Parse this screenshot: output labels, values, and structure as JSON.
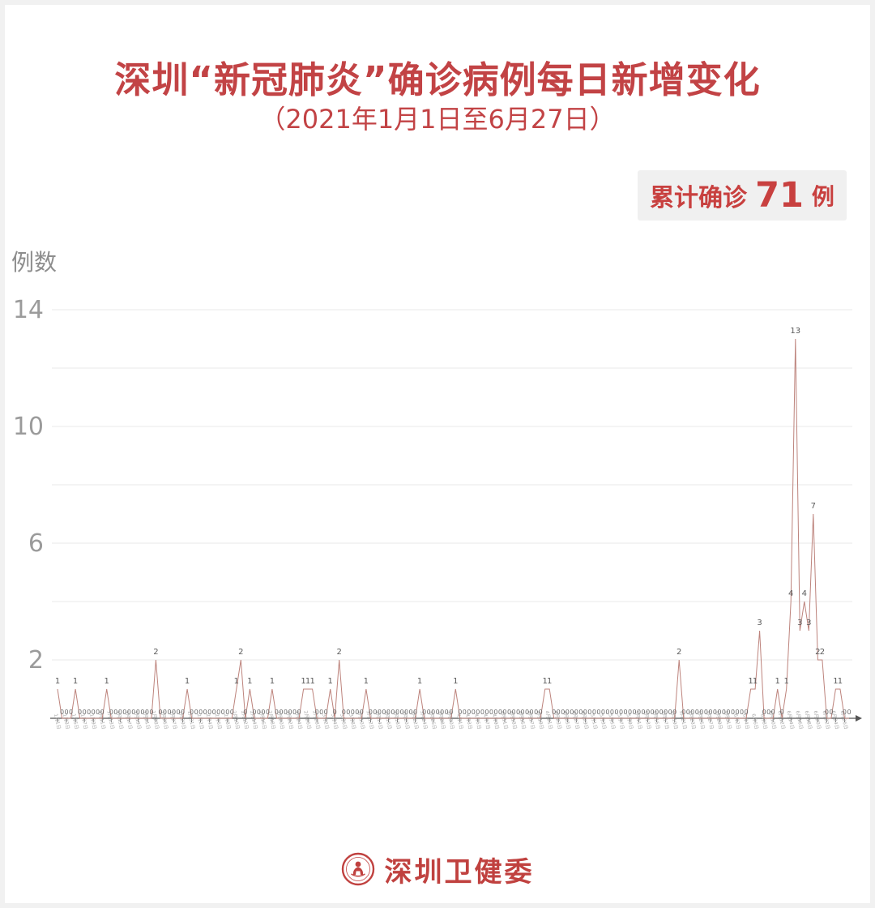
{
  "title": "深圳“新冠肺炎”确诊病例每日新增变化",
  "subtitle": "（2021年1月1日至6月27日）",
  "badge": {
    "prefix": "累计确诊",
    "count": "71",
    "suffix": "例"
  },
  "y_axis_unit": "例数",
  "footer": {
    "brand": "深圳卫健委",
    "logo": "shenzhen-health-commission-seal"
  },
  "colors": {
    "accent_red": "#c24345",
    "badge_bg": "#f0f0f0",
    "line": "#bd837c",
    "grid": "#eaeaea",
    "axis": "#555555",
    "value_label": "#5a5a5a",
    "zero_label": "#6a6a6a",
    "ytick": "#9b9b9b",
    "xdate": "#aaaaaa"
  },
  "chart_data": {
    "type": "line",
    "title": "深圳“新冠肺炎”确诊病例每日新增变化",
    "subtitle": "2021年1月1日至6月27日",
    "ylabel": "例数",
    "ylim": [
      0,
      14
    ],
    "yticks_labeled": [
      2,
      6,
      10,
      14
    ],
    "gridline_step": 2,
    "grid": true,
    "legend": "none",
    "total_cases": 71,
    "x_is_daily_dates": true,
    "months": [
      {
        "label": "1月",
        "days": 31
      },
      {
        "label": "2月",
        "days": 28
      },
      {
        "label": "3月",
        "days": 31
      },
      {
        "label": "4月",
        "days": 30
      },
      {
        "label": "5月",
        "days": 31
      },
      {
        "label": "6月",
        "days": 27
      }
    ],
    "x_tick_label_every": 2,
    "values": [
      1,
      0,
      0,
      0,
      1,
      0,
      0,
      0,
      0,
      0,
      0,
      1,
      0,
      0,
      0,
      0,
      0,
      0,
      0,
      0,
      0,
      0,
      2,
      0,
      0,
      0,
      0,
      0,
      0,
      1,
      0,
      0,
      0,
      0,
      0,
      0,
      0,
      0,
      0,
      0,
      1,
      2,
      0,
      1,
      0,
      0,
      0,
      0,
      1,
      0,
      0,
      0,
      0,
      0,
      0,
      1,
      1,
      1,
      0,
      0,
      0,
      1,
      0,
      2,
      0,
      0,
      0,
      0,
      0,
      1,
      0,
      0,
      0,
      0,
      0,
      0,
      0,
      0,
      0,
      0,
      0,
      1,
      0,
      0,
      0,
      0,
      0,
      0,
      0,
      1,
      0,
      0,
      0,
      0,
      0,
      0,
      0,
      0,
      0,
      0,
      0,
      0,
      0,
      0,
      0,
      0,
      0,
      0,
      0,
      1,
      1,
      0,
      0,
      0,
      0,
      0,
      0,
      0,
      0,
      0,
      0,
      0,
      0,
      0,
      0,
      0,
      0,
      0,
      0,
      0,
      0,
      0,
      0,
      0,
      0,
      0,
      0,
      0,
      0,
      2,
      0,
      0,
      0,
      0,
      0,
      0,
      0,
      0,
      0,
      0,
      0,
      0,
      0,
      0,
      0,
      1,
      1,
      3,
      0,
      0,
      0,
      1,
      0,
      1,
      4,
      13,
      3,
      4,
      3,
      7,
      2,
      2,
      0,
      0,
      1,
      1,
      0,
      0
    ]
  }
}
